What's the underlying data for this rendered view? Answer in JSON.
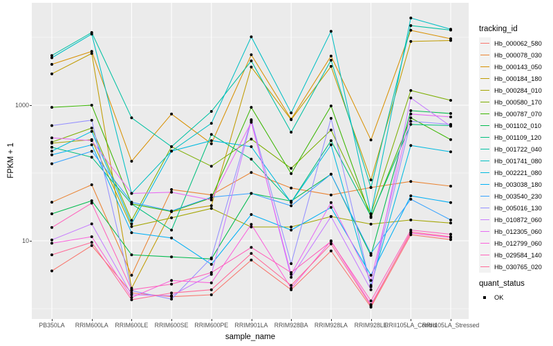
{
  "figure": {
    "y_axis": {
      "title": "FPKM + 1",
      "scale": "log10",
      "ticks": [
        {
          "label": "1000",
          "value": 1000
        },
        {
          "label": "10",
          "value": 10
        }
      ]
    },
    "x_axis": {
      "title": "sample_name"
    },
    "legend": {
      "tracking_title": "tracking_id",
      "quant_title": "quant_status",
      "quant_items": [
        {
          "label": "OK",
          "marker": "black-square-point"
        }
      ]
    },
    "style": {
      "panel_background": "#EBEBEB",
      "gridline_color": "#FFFFFF",
      "tick_text_color": "#4D4D4D",
      "point_color": "#000000"
    }
  },
  "chart_data": {
    "type": "line",
    "title": "",
    "xlabel": "sample_name",
    "ylabel": "FPKM + 1",
    "y_scale": "log10",
    "ylim": [
      0.7,
      30000
    ],
    "y_ticks_labeled": [
      1000,
      10
    ],
    "y_gridlines_major": [
      10,
      1000
    ],
    "y_gridlines_minor": [
      1,
      100,
      10000
    ],
    "grid": true,
    "legend_position": "right",
    "categories": [
      "PB350LA",
      "RRIM600LA",
      "RRIM600LE",
      "RRIM600SE",
      "RRIM600PE",
      "RRIM901LA",
      "RRIM928BA",
      "RRIM928LA",
      "RRIM928LE",
      "RRII105LA_Control",
      "RRII105LA_Stressed"
    ],
    "series": [
      {
        "name": "Hb_000062_580",
        "color": "#F8766D",
        "values": [
          3.6,
          8.5,
          1.7,
          1.5,
          1.6,
          5.2,
          1.9,
          7.1,
          1.05,
          12.3,
          10.4
        ]
      },
      {
        "name": "Hb_000078_030",
        "color": "#EA8331",
        "values": [
          37,
          67,
          3.1,
          57,
          47.5,
          102,
          60,
          47.5,
          61,
          75,
          64
        ]
      },
      {
        "name": "Hb_000143_050",
        "color": "#D89000",
        "values": [
          4000,
          6200,
          149,
          740,
          270,
          5540,
          620,
          5300,
          307,
          12700,
          9550
        ]
      },
      {
        "name": "Hb_000184_180",
        "color": "#C09B00",
        "values": [
          2900,
          5800,
          2.0,
          27,
          33,
          3650,
          610,
          3740,
          79,
          8700,
          9000
        ]
      },
      {
        "name": "Hb_000284_010",
        "color": "#A3A500",
        "values": [
          275,
          310,
          16.2,
          21.8,
          30,
          16,
          16,
          22.8,
          17.6,
          20.3,
          18.3
        ]
      },
      {
        "name": "Hb_000580_170",
        "color": "#7CAE00",
        "values": [
          285,
          460,
          20,
          245,
          126,
          316,
          117,
          430,
          25,
          1650,
          1180
        ]
      },
      {
        "name": "Hb_000787_070",
        "color": "#39B600",
        "values": [
          930,
          1000,
          35,
          27,
          43,
          930,
          98,
          975,
          22,
          650,
          310
        ]
      },
      {
        "name": "Hb_001102_010",
        "color": "#00BB4E",
        "values": [
          25,
          39,
          6.2,
          5.8,
          5.4,
          50,
          38.5,
          96,
          6.1,
          830,
          755
        ]
      },
      {
        "name": "Hb_001109_120",
        "color": "#00BF7D",
        "values": [
          240,
          171,
          35,
          14.4,
          370,
          160,
          37,
          300,
          23,
          520,
          500
        ]
      },
      {
        "name": "Hb_001722_040",
        "color": "#00C1A3",
        "values": [
          5400,
          11800,
          650,
          245,
          810,
          4500,
          400,
          4600,
          61,
          14900,
          12800
        ]
      },
      {
        "name": "Hb_001741_080",
        "color": "#00BFC4",
        "values": [
          5000,
          11200,
          50,
          210,
          540,
          10200,
          770,
          12300,
          25,
          19300,
          13200
        ]
      },
      {
        "name": "Hb_002221_080",
        "color": "#00BAE0",
        "values": [
          210,
          410,
          17.8,
          210,
          300,
          244,
          36.7,
          260,
          2.2,
          255,
          205
        ]
      },
      {
        "name": "Hb_003038_180",
        "color": "#00B0F6",
        "values": [
          185,
          260,
          13.2,
          11,
          4.5,
          24.4,
          14.4,
          31,
          3.1,
          46,
          36.7
        ]
      },
      {
        "name": "Hb_003540_230",
        "color": "#35A2FF",
        "values": [
          137,
          209,
          37,
          27.5,
          44,
          50,
          32.8,
          96,
          6.5,
          41,
          20.3
        ]
      },
      {
        "name": "Hb_005016_130",
        "color": "#9590FF",
        "values": [
          500,
          600,
          1.84,
          1.38,
          5.6,
          610,
          4.6,
          640,
          2.1,
          580,
          520
        ]
      },
      {
        "name": "Hb_010872_060",
        "color": "#C77CFF",
        "values": [
          10.3,
          17.8,
          1.6,
          1.55,
          3.2,
          590,
          2.9,
          22.8,
          1.9,
          1280,
          490
        ]
      },
      {
        "name": "Hb_012305_060",
        "color": "#E76BF3",
        "values": [
          330,
          300,
          50,
          52,
          40,
          560,
          3.2,
          36.7,
          2.6,
          740,
          670
        ]
      },
      {
        "name": "Hb_012799_060",
        "color": "#FA62DB",
        "values": [
          9.2,
          11.5,
          1.46,
          2.6,
          2.4,
          17.5,
          2.0,
          10,
          1.15,
          13,
          11.2
        ]
      },
      {
        "name": "Hb_029584_140",
        "color": "#FF62BC",
        "values": [
          15.7,
          36,
          1.9,
          2.3,
          3.4,
          8,
          3.4,
          9.8,
          1.3,
          14.4,
          12.5
        ]
      },
      {
        "name": "Hb_030765_020",
        "color": "#FF6A98",
        "values": [
          6.2,
          9.5,
          1.35,
          1.7,
          1.9,
          6.5,
          2.2,
          9.0,
          1.1,
          13.5,
          11.5
        ]
      }
    ]
  }
}
